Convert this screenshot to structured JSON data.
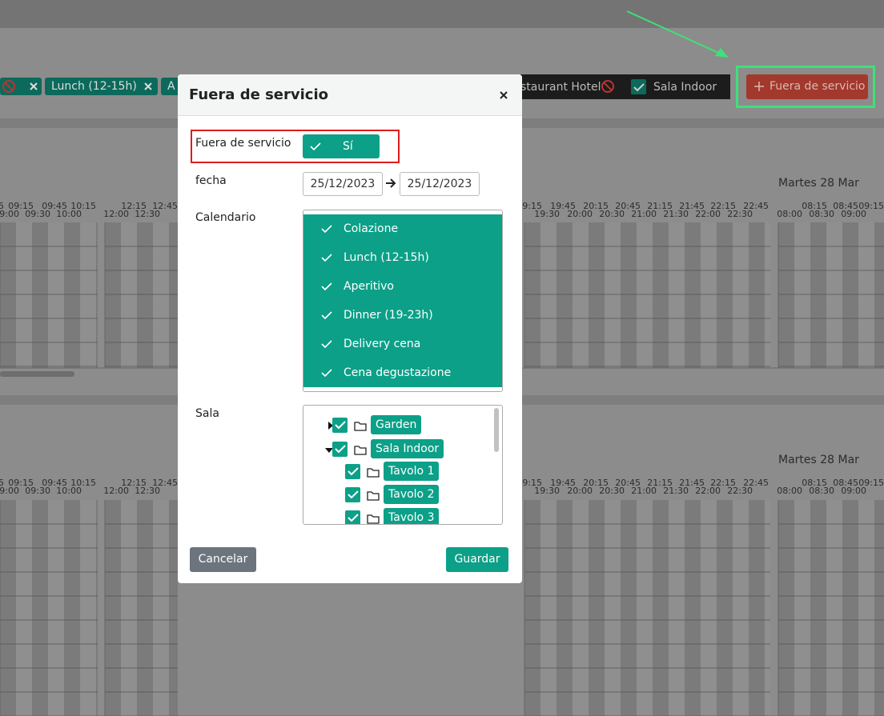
{
  "filter_bar": {
    "chips": [
      "Lunch (12-15h)",
      "A"
    ],
    "room_filter": "staurant Hotel",
    "room_selected": "Sala Indoor",
    "add_button": "Fuera de servicio"
  },
  "schedules": [
    {
      "day": "Martes 28 Mar",
      "time_groups": [
        {
          "top": [
            "5",
            "09:15",
            "09:45",
            "10:15"
          ],
          "bottom": [
            "9:00",
            "09:30",
            "10:00"
          ]
        },
        {
          "top": [
            "12:15",
            "12:45"
          ],
          "bottom": [
            "12:00",
            "12:30"
          ]
        },
        {
          "top": [
            "9:15",
            "19:45",
            "20:15",
            "20:45",
            "21:15",
            "21:45",
            "22:15",
            "22:45"
          ],
          "bottom": [
            "19:30",
            "20:00",
            "20:30",
            "21:00",
            "21:30",
            "22:00",
            "22:30"
          ]
        },
        {
          "top": [
            "08:15",
            "08:45",
            "09:15"
          ],
          "bottom": [
            "08:00",
            "08:30",
            "09:00"
          ]
        }
      ]
    },
    {
      "day": "Martes 28 Mar",
      "time_groups": [
        {
          "top": [
            "5",
            "09:15",
            "09:45",
            "10:15"
          ],
          "bottom": [
            "9:00",
            "09:30",
            "10:00"
          ]
        },
        {
          "top": [
            "12:15",
            "12:45"
          ],
          "bottom": [
            "12:00",
            "12:30"
          ]
        },
        {
          "top": [
            "9:15",
            "19:45",
            "20:15",
            "20:45",
            "21:15",
            "21:45",
            "22:15",
            "22:45"
          ],
          "bottom": [
            "19:30",
            "20:00",
            "20:30",
            "21:00",
            "21:30",
            "22:00",
            "22:30"
          ]
        },
        {
          "top": [
            "08:15",
            "08:45",
            "09:15"
          ],
          "bottom": [
            "08:00",
            "08:30",
            "09:00"
          ]
        }
      ]
    }
  ],
  "modal": {
    "title": "Fuera de servicio",
    "out_of_service": {
      "label": "Fuera de servicio",
      "toggle": "Sí"
    },
    "date": {
      "label": "fecha",
      "from": "25/12/2023",
      "to": "25/12/2023"
    },
    "calendar": {
      "label": "Calendario",
      "options": [
        "Colazione",
        "Lunch (12-15h)",
        "Aperitivo",
        "Dinner (19-23h)",
        "Delivery cena",
        "Cena degustazione"
      ]
    },
    "room": {
      "label": "Sala",
      "tree": [
        {
          "label": "Garden",
          "level": 0,
          "expanded": false
        },
        {
          "label": "Sala Indoor",
          "level": 0,
          "expanded": true
        },
        {
          "label": "Tavolo 1",
          "level": 1
        },
        {
          "label": "Tavolo 2",
          "level": 1
        },
        {
          "label": "Tavolo 3",
          "level": 1
        }
      ]
    },
    "cancel": "Cancelar",
    "save": "Guardar"
  }
}
